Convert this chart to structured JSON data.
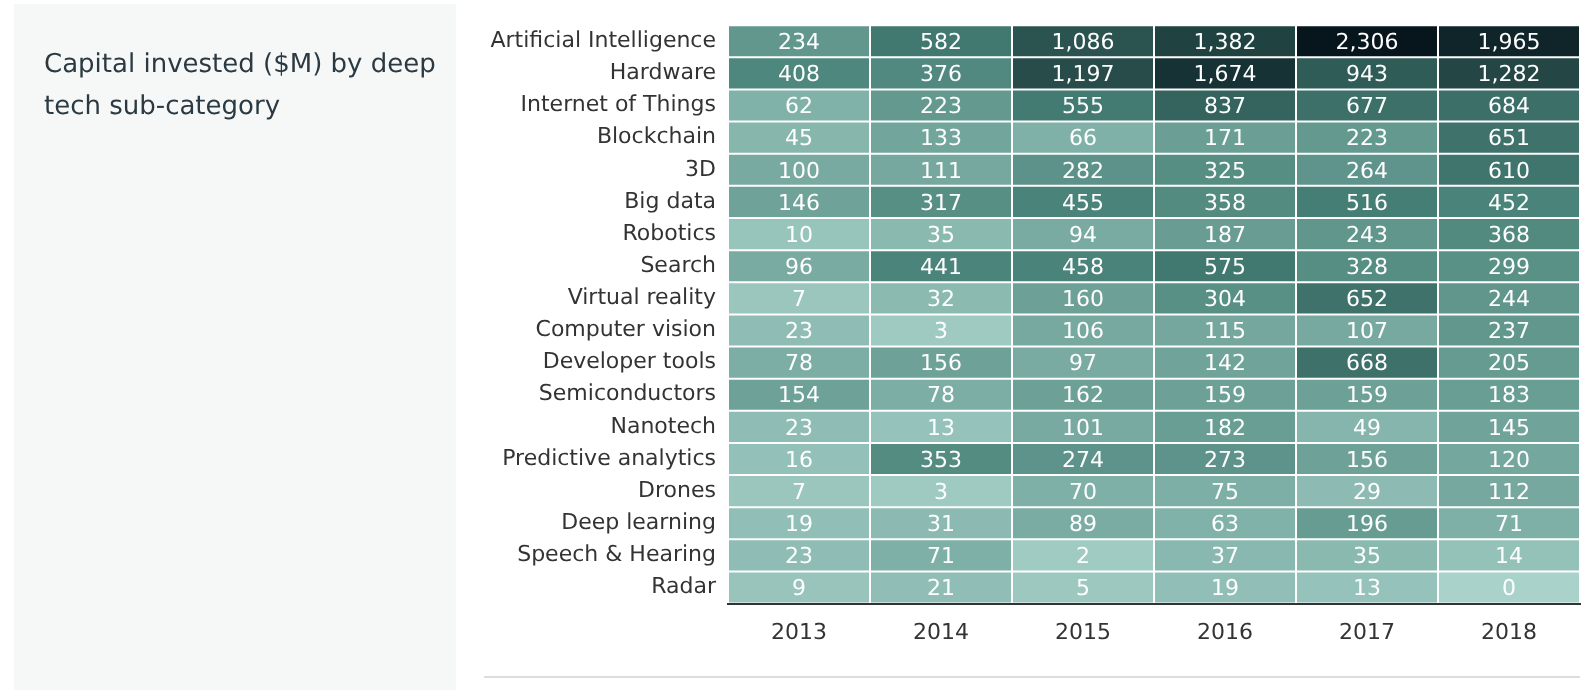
{
  "chart_data": {
    "type": "heatmap",
    "title": "Capital invested ($M) by deep tech sub-category",
    "categories": [
      "2013",
      "2014",
      "2015",
      "2016",
      "2017",
      "2018"
    ],
    "y_categories": [
      "Artificial Intelligence",
      "Hardware",
      "Internet of Things",
      "Blockchain",
      "3D",
      "Big data",
      "Robotics",
      "Search",
      "Virtual reality",
      "Computer vision",
      "Developer tools",
      "Semiconductors",
      "Nanotech",
      "Predictive analytics",
      "Drones",
      "Deep learning",
      "Speech & Hearing",
      "Radar"
    ],
    "cells": [
      [
        234,
        582,
        1086,
        1382,
        2306,
        1965
      ],
      [
        408,
        376,
        1197,
        1674,
        943,
        1282
      ],
      [
        62,
        223,
        555,
        837,
        677,
        684
      ],
      [
        45,
        133,
        66,
        171,
        223,
        651
      ],
      [
        100,
        111,
        282,
        325,
        264,
        610
      ],
      [
        146,
        317,
        455,
        358,
        516,
        452
      ],
      [
        10,
        35,
        94,
        187,
        243,
        368
      ],
      [
        96,
        441,
        458,
        575,
        328,
        299
      ],
      [
        7,
        32,
        160,
        304,
        652,
        244
      ],
      [
        23,
        3,
        106,
        115,
        107,
        237
      ],
      [
        78,
        156,
        97,
        142,
        668,
        205
      ],
      [
        154,
        78,
        162,
        159,
        159,
        183
      ],
      [
        23,
        13,
        101,
        182,
        49,
        145
      ],
      [
        16,
        353,
        274,
        273,
        156,
        120
      ],
      [
        7,
        3,
        70,
        75,
        29,
        112
      ],
      [
        19,
        31,
        89,
        63,
        196,
        71
      ],
      [
        23,
        71,
        2,
        37,
        35,
        14
      ],
      [
        9,
        21,
        5,
        19,
        13,
        0
      ]
    ],
    "cell_labels": [
      [
        "234",
        "582",
        "1,086",
        "1,382",
        "2,306",
        "1,965"
      ],
      [
        "408",
        "376",
        "1,197",
        "1,674",
        "943",
        "1,282"
      ],
      [
        "62",
        "223",
        "555",
        "837",
        "677",
        "684"
      ],
      [
        "45",
        "133",
        "66",
        "171",
        "223",
        "651"
      ],
      [
        "100",
        "111",
        "282",
        "325",
        "264",
        "610"
      ],
      [
        "146",
        "317",
        "455",
        "358",
        "516",
        "452"
      ],
      [
        "10",
        "35",
        "94",
        "187",
        "243",
        "368"
      ],
      [
        "96",
        "441",
        "458",
        "575",
        "328",
        "299"
      ],
      [
        "7",
        "32",
        "160",
        "304",
        "652",
        "244"
      ],
      [
        "23",
        "3",
        "106",
        "115",
        "107",
        "237"
      ],
      [
        "78",
        "156",
        "97",
        "142",
        "668",
        "205"
      ],
      [
        "154",
        "78",
        "162",
        "159",
        "159",
        "183"
      ],
      [
        "23",
        "13",
        "101",
        "182",
        "49",
        "145"
      ],
      [
        "16",
        "353",
        "274",
        "273",
        "156",
        "120"
      ],
      [
        "7",
        "3",
        "70",
        "75",
        "29",
        "112"
      ],
      [
        "19",
        "31",
        "89",
        "63",
        "196",
        "71"
      ],
      [
        "23",
        "71",
        "2",
        "37",
        "35",
        "14"
      ],
      [
        "9",
        "21",
        "5",
        "19",
        "13",
        "0"
      ]
    ]
  }
}
